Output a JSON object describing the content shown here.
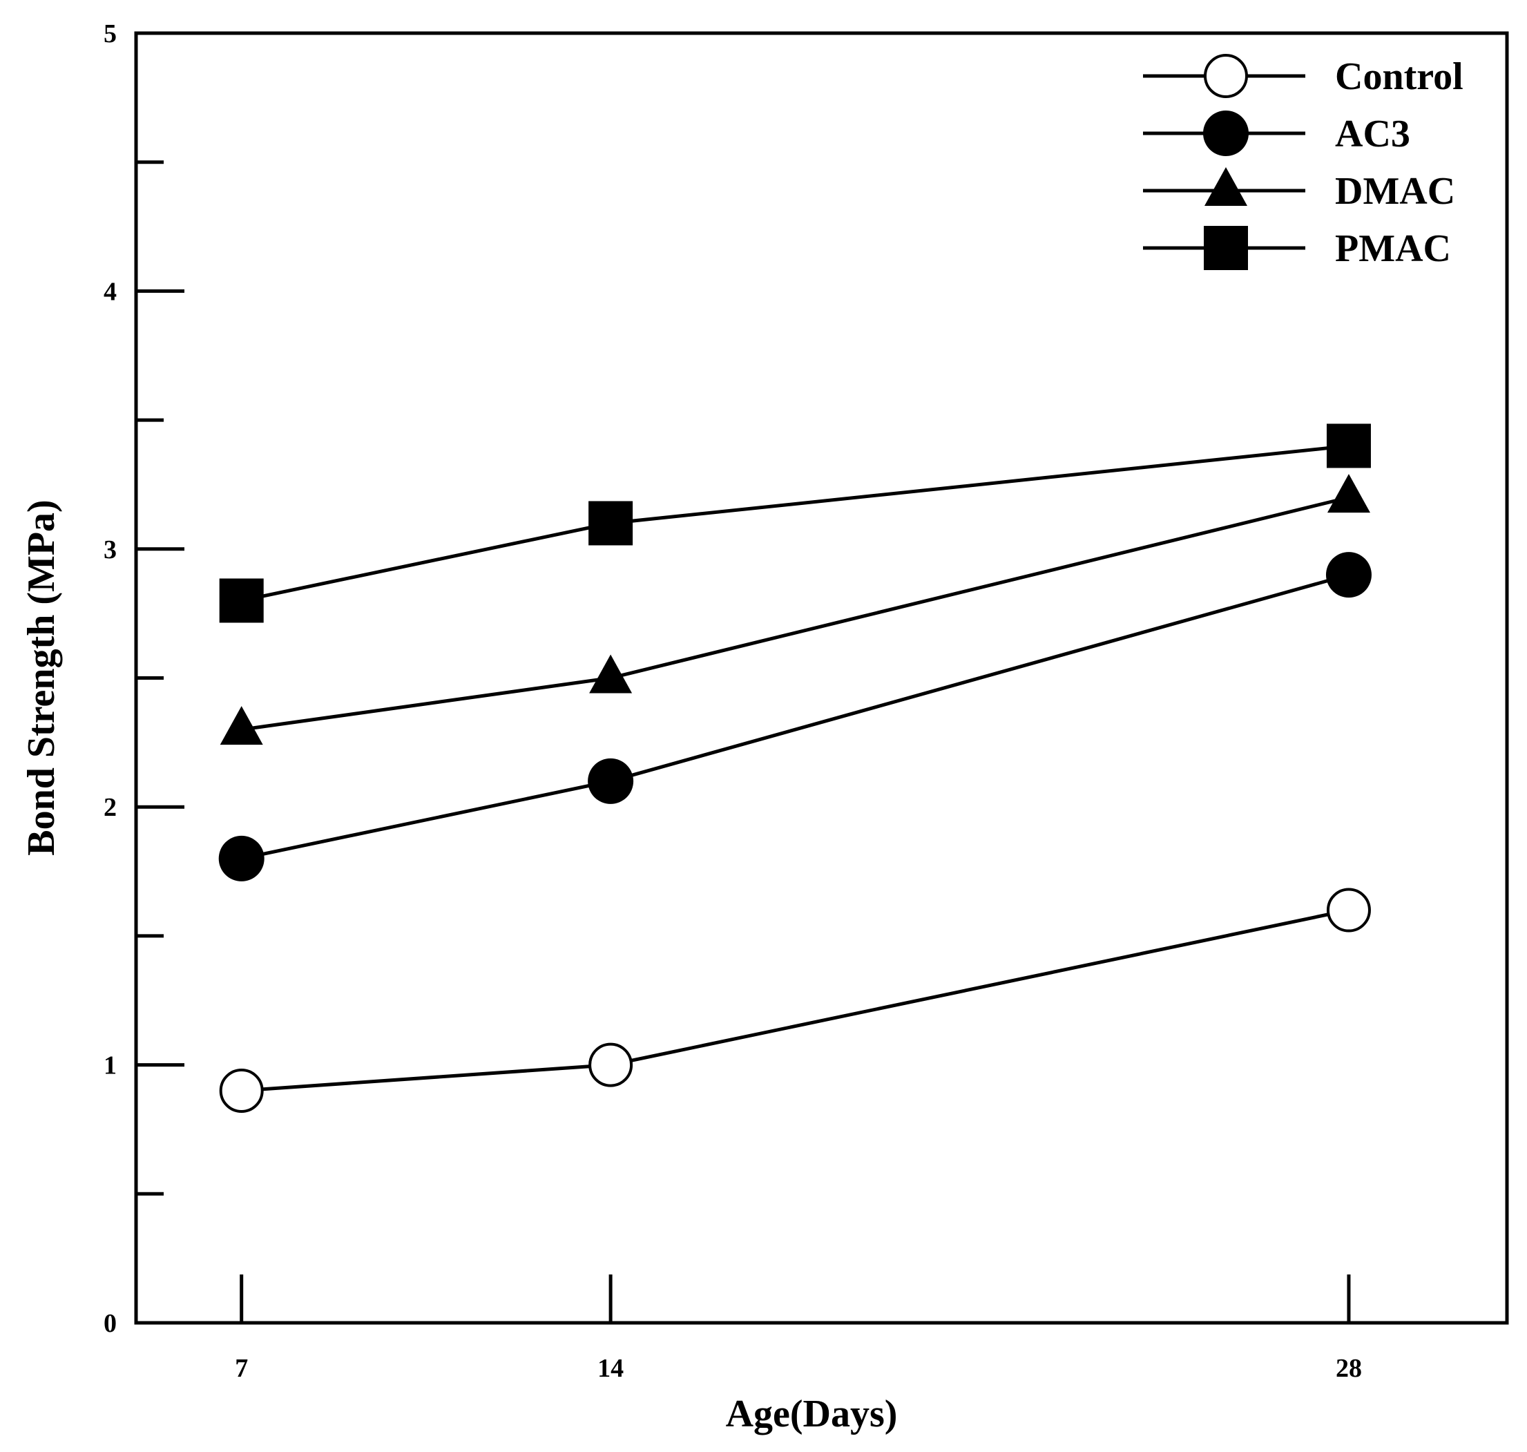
{
  "chart_data": {
    "type": "line",
    "title": "",
    "xlabel": "Age(Days)",
    "ylabel": "Bond Strength (MPa)",
    "x": [
      7,
      14,
      28
    ],
    "x_tick_labels": [
      "7",
      "14",
      "28"
    ],
    "xlim": [
      5,
      31
    ],
    "ylim": [
      0,
      5
    ],
    "y_tick_labels": [
      "0",
      "1",
      "2",
      "3",
      "4",
      "5"
    ],
    "y_major_ticks": [
      0,
      1,
      2,
      3,
      4,
      5
    ],
    "y_minor_ticks": [
      0.5,
      1.5,
      2.5,
      3.5,
      4.5
    ],
    "grid": false,
    "legend_position": "top-right",
    "series": [
      {
        "name": "Control",
        "marker": "open-circle",
        "values": [
          0.9,
          1.0,
          1.6
        ]
      },
      {
        "name": "AC3",
        "marker": "filled-circle",
        "values": [
          1.8,
          2.1,
          2.9
        ]
      },
      {
        "name": "DMAC",
        "marker": "filled-triangle",
        "values": [
          2.3,
          2.5,
          3.2
        ]
      },
      {
        "name": "PMAC",
        "marker": "filled-square",
        "values": [
          2.8,
          3.1,
          3.4
        ]
      }
    ],
    "colors": {
      "line": "#000000",
      "background": "#ffffff"
    }
  }
}
